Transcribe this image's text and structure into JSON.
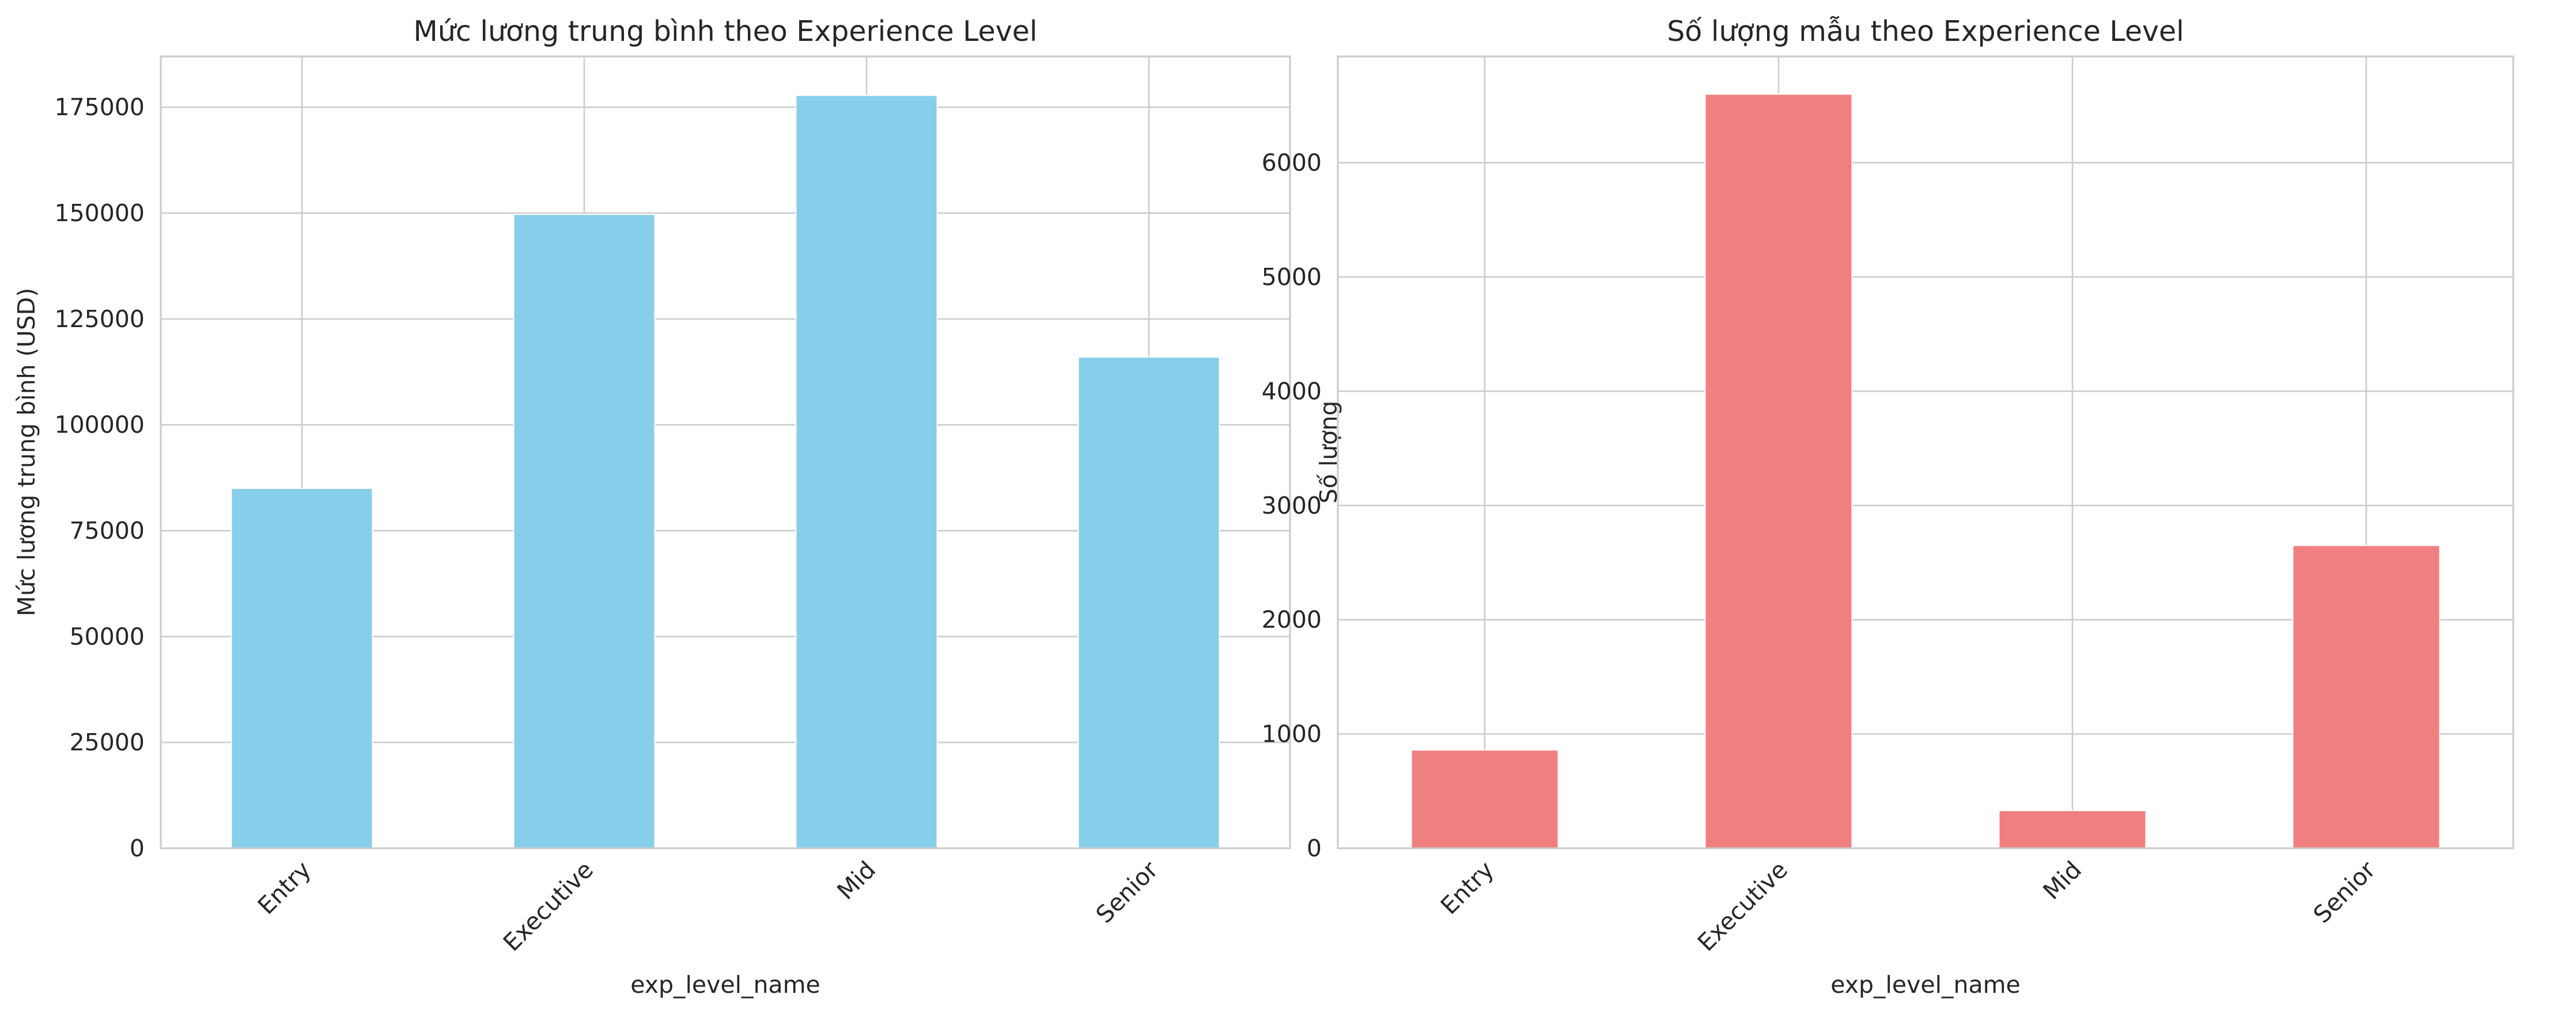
{
  "chart_data": [
    {
      "type": "bar",
      "title": "Mức lương trung bình theo Experience Level",
      "xlabel": "exp_level_name",
      "ylabel": "Mức lương trung bình (USD)",
      "categories": [
        "Entry",
        "Executive",
        "Mid",
        "Senior"
      ],
      "values": [
        85000,
        149700,
        177800,
        116000
      ],
      "ylim": [
        0,
        187000
      ],
      "yticks": [
        0,
        25000,
        50000,
        75000,
        100000,
        125000,
        150000,
        175000
      ],
      "ytick_labels": [
        "0",
        "25000",
        "50000",
        "75000",
        "100000",
        "125000",
        "150000",
        "175000"
      ],
      "color": "#87ceeb",
      "grid": true,
      "legend": "none"
    },
    {
      "type": "bar",
      "title": "Số lượng mẫu theo Experience Level",
      "xlabel": "exp_level_name",
      "ylabel": "Số lượng",
      "categories": [
        "Entry",
        "Executive",
        "Mid",
        "Senior"
      ],
      "values": [
        860,
        6600,
        330,
        2650
      ],
      "ylim": [
        0,
        6930
      ],
      "yticks": [
        0,
        1000,
        2000,
        3000,
        4000,
        5000,
        6000
      ],
      "ytick_labels": [
        "0",
        "1000",
        "2000",
        "3000",
        "4000",
        "5000",
        "6000"
      ],
      "color": "#f08080",
      "grid": true,
      "legend": "none"
    }
  ]
}
